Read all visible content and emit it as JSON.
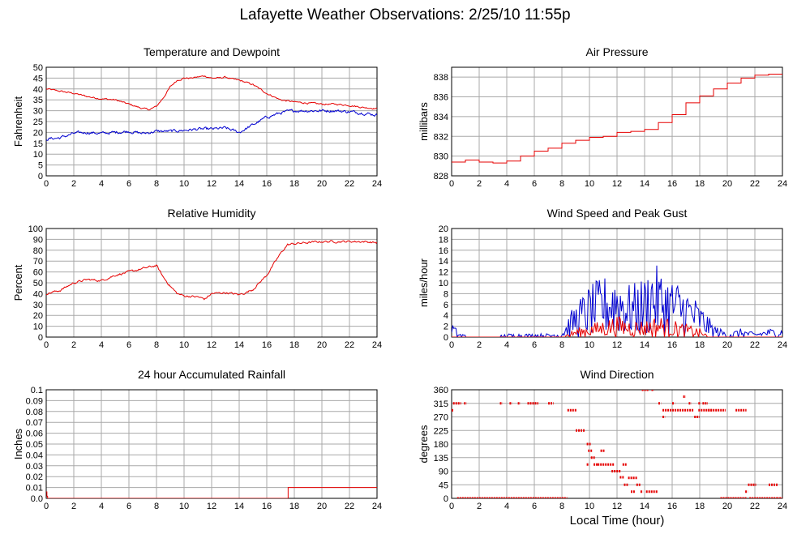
{
  "page": {
    "title": "Lafayette Weather Observations: 2/25/10 11:55p",
    "xlabel": "Local Time (hour)"
  },
  "colors": {
    "red": "#e60000",
    "blue": "#0000d0",
    "grid": "#a8a8a8"
  },
  "chart_data": [
    {
      "id": "temperature",
      "type": "line",
      "title": "Temperature and Dewpoint",
      "ylabel": "Fahrenheit",
      "xlim": [
        0,
        24
      ],
      "ylim": [
        0,
        50
      ],
      "xticks": [
        0,
        2,
        4,
        6,
        8,
        10,
        12,
        14,
        16,
        18,
        20,
        22,
        24
      ],
      "yticks": [
        0,
        5,
        10,
        15,
        20,
        25,
        30,
        35,
        40,
        45,
        50
      ],
      "ytick_labels": [
        "0",
        "5",
        "10",
        "15",
        "20",
        "25",
        "30",
        "35",
        "40",
        "45",
        "50"
      ],
      "grid": true,
      "series": [
        {
          "color": "red",
          "x": [
            0,
            1,
            2,
            3,
            4,
            5,
            6,
            7,
            7.5,
            8,
            8.5,
            9,
            9.5,
            10,
            10.5,
            11,
            11.5,
            12,
            12.5,
            13,
            13.5,
            14,
            14.5,
            15,
            16,
            17,
            18,
            19,
            20,
            21,
            22,
            23,
            24
          ],
          "y": [
            40,
            39,
            38,
            36.5,
            35.5,
            35,
            33,
            31,
            30.5,
            32,
            36,
            41,
            44,
            45,
            45,
            45.5,
            46,
            45,
            45,
            45.5,
            44.5,
            44,
            43,
            42,
            38,
            35,
            34,
            33.5,
            33,
            33,
            32.5,
            31.5,
            31
          ],
          "noise": 0.6
        },
        {
          "color": "blue",
          "x": [
            0,
            1,
            2,
            3,
            4,
            5,
            6,
            7,
            8,
            9,
            10,
            11,
            12,
            13,
            14,
            15,
            16,
            17,
            18,
            19,
            20,
            21,
            22,
            23,
            24
          ],
          "y": [
            17,
            17.5,
            19.5,
            20,
            19.5,
            20,
            20.5,
            19.5,
            20.5,
            20.5,
            21,
            21.5,
            21.5,
            22,
            20,
            23.5,
            27,
            29,
            30,
            30,
            30,
            30,
            29.5,
            29,
            28
          ],
          "noise": 1.1
        }
      ]
    },
    {
      "id": "pressure",
      "type": "line",
      "title": "Air Pressure",
      "ylabel": "millibars",
      "xlim": [
        0,
        24
      ],
      "ylim": [
        828,
        839
      ],
      "xticks": [
        0,
        2,
        4,
        6,
        8,
        10,
        12,
        14,
        16,
        18,
        20,
        22,
        24
      ],
      "yticks": [
        828,
        830,
        832,
        834,
        836,
        838
      ],
      "ytick_labels": [
        "828",
        "830",
        "832",
        "834",
        "836",
        "838"
      ],
      "grid": true,
      "series": [
        {
          "color": "red",
          "step": true,
          "x": [
            0,
            1,
            2,
            3,
            3.5,
            4,
            5,
            6,
            7,
            8,
            9,
            10,
            11,
            12,
            13,
            14,
            15,
            16,
            17,
            18,
            19,
            20,
            21,
            22,
            23,
            24
          ],
          "y": [
            829.4,
            829.6,
            829.4,
            829.3,
            829.3,
            829.5,
            830,
            830.5,
            830.8,
            831.3,
            831.6,
            831.9,
            832,
            832.4,
            832.5,
            832.7,
            833.4,
            834.2,
            835.4,
            836.1,
            836.8,
            837.4,
            837.9,
            838.2,
            838.3,
            838.3
          ],
          "noise": 0
        }
      ]
    },
    {
      "id": "humidity",
      "type": "line",
      "title": "Relative Humidity",
      "ylabel": "Percent",
      "xlim": [
        0,
        24
      ],
      "ylim": [
        0,
        100
      ],
      "xticks": [
        0,
        2,
        4,
        6,
        8,
        10,
        12,
        14,
        16,
        18,
        20,
        22,
        24
      ],
      "yticks": [
        0,
        10,
        20,
        30,
        40,
        50,
        60,
        70,
        80,
        90,
        100
      ],
      "ytick_labels": [
        "0",
        "10",
        "20",
        "30",
        "40",
        "50",
        "60",
        "70",
        "80",
        "90",
        "100"
      ],
      "grid": true,
      "series": [
        {
          "color": "red",
          "x": [
            0,
            1,
            2,
            3,
            4,
            5,
            6,
            7,
            8,
            8.5,
            9,
            9.5,
            10,
            11,
            11.5,
            12,
            13,
            14,
            14.5,
            15,
            16,
            17,
            17.5,
            18,
            19,
            20,
            21,
            22,
            23,
            24
          ],
          "y": [
            40,
            43,
            50,
            53,
            52,
            57,
            60,
            63,
            66,
            55,
            47,
            40,
            38,
            37,
            35,
            40,
            41,
            39,
            41,
            44,
            57,
            77,
            85,
            86,
            87,
            88,
            88,
            88,
            88,
            87
          ],
          "noise": 1.6
        }
      ]
    },
    {
      "id": "wind",
      "type": "line",
      "title": "Wind Speed and Peak Gust",
      "ylabel": "miles/hour",
      "xlim": [
        0,
        24
      ],
      "ylim": [
        0,
        20
      ],
      "xticks": [
        0,
        2,
        4,
        6,
        8,
        10,
        12,
        14,
        16,
        18,
        20,
        22,
        24
      ],
      "yticks": [
        0,
        2,
        4,
        6,
        8,
        10,
        12,
        14,
        16,
        18,
        20
      ],
      "ytick_labels": [
        "0",
        "2",
        "4",
        "6",
        "8",
        "10",
        "12",
        "14",
        "16",
        "18",
        "20"
      ],
      "grid": true,
      "series": [
        {
          "color": "blue",
          "spiky": true,
          "x": [
            0,
            0.5,
            1,
            2,
            3,
            4,
            5,
            6,
            7,
            8,
            8.5,
            9,
            10,
            11,
            12,
            13,
            14,
            14.5,
            15,
            16,
            17,
            18,
            19,
            20,
            21,
            22,
            23,
            24
          ],
          "y": [
            2,
            0.5,
            0.3,
            0,
            0,
            0.4,
            0.4,
            0.4,
            0.4,
            0.5,
            2.5,
            4,
            6,
            7,
            8,
            6,
            7,
            9,
            8,
            7,
            6,
            4,
            1.5,
            0.5,
            1,
            0.5,
            1,
            1
          ],
          "noise": 0
        },
        {
          "color": "red",
          "spiky": true,
          "x": [
            0,
            8,
            8.5,
            9,
            10,
            11,
            12,
            13,
            14,
            15,
            16,
            17,
            18,
            18.5,
            19,
            24
          ],
          "y": [
            0,
            0,
            0.5,
            1,
            1.5,
            2,
            2.5,
            2,
            2,
            2.5,
            2,
            1.5,
            1,
            0.3,
            0,
            0
          ],
          "noise": 0
        }
      ]
    },
    {
      "id": "rain",
      "type": "line",
      "title": "24 hour Accumulated Rainfall",
      "ylabel": "Inches",
      "xlim": [
        0,
        24
      ],
      "ylim": [
        0,
        0.1
      ],
      "xticks": [
        0,
        2,
        4,
        6,
        8,
        10,
        12,
        14,
        16,
        18,
        20,
        22,
        24
      ],
      "yticks": [
        0,
        0.01,
        0.02,
        0.03,
        0.04,
        0.05,
        0.06,
        0.07,
        0.08,
        0.09,
        0.1
      ],
      "ytick_labels": [
        "0.0",
        "0.01",
        "0.02",
        "0.03",
        "0.04",
        "0.05",
        "0.06",
        "0.07",
        "0.08",
        "0.09",
        "0.1"
      ],
      "grid": true,
      "series": [
        {
          "color": "red",
          "step": true,
          "x": [
            0,
            0.05,
            0.1,
            17.5,
            17.55,
            24
          ],
          "y": [
            0.006,
            0.002,
            0,
            0,
            0.01,
            0.01
          ],
          "noise": 0
        }
      ]
    },
    {
      "id": "direction",
      "type": "scatter",
      "title": "Wind Direction",
      "ylabel": "degrees",
      "xlim": [
        0,
        24
      ],
      "ylim": [
        0,
        360
      ],
      "xticks": [
        0,
        2,
        4,
        6,
        8,
        10,
        12,
        14,
        16,
        18,
        20,
        22,
        24
      ],
      "yticks": [
        0,
        45,
        90,
        135,
        180,
        225,
        270,
        315,
        360
      ],
      "ytick_labels": [
        "0",
        "45",
        "90",
        "135",
        "180",
        "225",
        "270",
        "315",
        "360"
      ],
      "grid": true,
      "segments": [
        {
          "x0": 0,
          "x1": 0.05,
          "y": 292
        },
        {
          "x0": 0.1,
          "x1": 0.6,
          "y": 315
        },
        {
          "x0": 0.9,
          "x1": 1.0,
          "y": 315
        },
        {
          "x0": 0.4,
          "x1": 8.3,
          "y": 0
        },
        {
          "x0": 3.5,
          "x1": 3.6,
          "y": 315
        },
        {
          "x0": 4.2,
          "x1": 4.3,
          "y": 315
        },
        {
          "x0": 4.8,
          "x1": 4.9,
          "y": 315
        },
        {
          "x0": 5.5,
          "x1": 6.2,
          "y": 315
        },
        {
          "x0": 7.0,
          "x1": 7.3,
          "y": 315
        },
        {
          "x0": 8.4,
          "x1": 9.0,
          "y": 292
        },
        {
          "x0": 9.0,
          "x1": 9.6,
          "y": 225
        },
        {
          "x0": 9.8,
          "x1": 10.0,
          "y": 180
        },
        {
          "x0": 9.9,
          "x1": 10.1,
          "y": 158
        },
        {
          "x0": 10.1,
          "x1": 10.3,
          "y": 135
        },
        {
          "x0": 9.8,
          "x1": 9.9,
          "y": 112
        },
        {
          "x0": 10.3,
          "x1": 10.5,
          "y": 112
        },
        {
          "x0": 10.8,
          "x1": 11.0,
          "y": 158
        },
        {
          "x0": 10.6,
          "x1": 11.7,
          "y": 112
        },
        {
          "x0": 11.6,
          "x1": 12.2,
          "y": 90
        },
        {
          "x0": 12.2,
          "x1": 12.4,
          "y": 70
        },
        {
          "x0": 12.4,
          "x1": 12.6,
          "y": 112
        },
        {
          "x0": 12.5,
          "x1": 12.7,
          "y": 45
        },
        {
          "x0": 12.8,
          "x1": 13.4,
          "y": 68
        },
        {
          "x0": 13.0,
          "x1": 13.2,
          "y": 22
        },
        {
          "x0": 13.4,
          "x1": 13.6,
          "y": 45
        },
        {
          "x0": 13.7,
          "x1": 13.8,
          "y": 22
        },
        {
          "x0": 13.8,
          "x1": 14.2,
          "y": 360
        },
        {
          "x0": 14.1,
          "x1": 14.9,
          "y": 22
        },
        {
          "x0": 14.5,
          "x1": 14.6,
          "y": 360
        },
        {
          "x0": 15.0,
          "x1": 15.1,
          "y": 315
        },
        {
          "x0": 15.3,
          "x1": 15.4,
          "y": 270
        },
        {
          "x0": 15.3,
          "x1": 17.5,
          "y": 292
        },
        {
          "x0": 16.0,
          "x1": 16.1,
          "y": 315
        },
        {
          "x0": 16.8,
          "x1": 16.9,
          "y": 337
        },
        {
          "x0": 17.2,
          "x1": 17.3,
          "y": 315
        },
        {
          "x0": 17.6,
          "x1": 17.9,
          "y": 270
        },
        {
          "x0": 17.9,
          "x1": 18.0,
          "y": 315
        },
        {
          "x0": 18.2,
          "x1": 18.5,
          "y": 315
        },
        {
          "x0": 17.9,
          "x1": 18.8,
          "y": 292
        },
        {
          "x0": 18.6,
          "x1": 19.8,
          "y": 292
        },
        {
          "x0": 19.5,
          "x1": 21.3,
          "y": 0
        },
        {
          "x0": 20.6,
          "x1": 21.3,
          "y": 292
        },
        {
          "x0": 21.3,
          "x1": 21.4,
          "y": 22
        },
        {
          "x0": 21.5,
          "x1": 22.0,
          "y": 45
        },
        {
          "x0": 21.6,
          "x1": 23.5,
          "y": 0
        },
        {
          "x0": 23.0,
          "x1": 23.6,
          "y": 45
        },
        {
          "x0": 23.6,
          "x1": 24,
          "y": 0
        }
      ]
    }
  ]
}
